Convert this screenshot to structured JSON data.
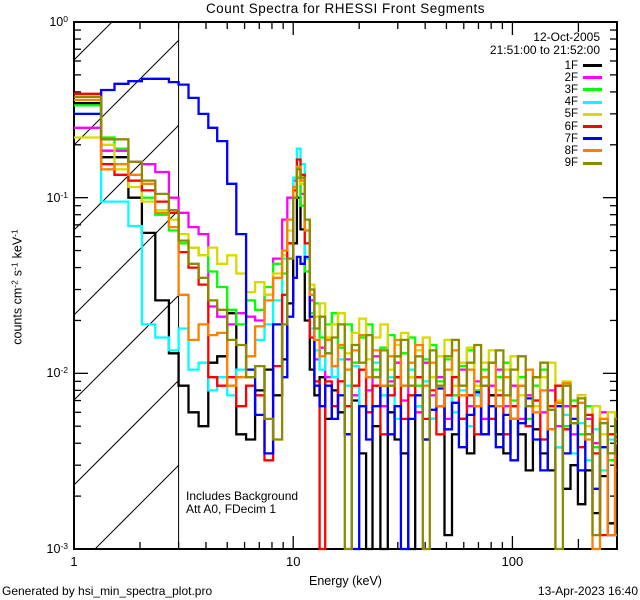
{
  "title": "Count Spectra for RHESSI Front Segments",
  "plot": {
    "date_line": "12-Oct-2005",
    "time_line": "21:51:00 to 21:52:00",
    "annotation_line1": "Includes Background",
    "annotation_line2": "Att A0, FDecim 1"
  },
  "footer": {
    "generated_by": "Generated by hsi_min_spectra_plot.pro",
    "timestamp": "13-Apr-2023 16:40"
  },
  "axes": {
    "x_label": "Energy (keV)",
    "y_label_parts": {
      "p1": "counts cm",
      "e1": "-2",
      "p2": "s",
      "e2": "-1",
      "p3": "keV",
      "e3": "-1"
    }
  },
  "legend": {
    "entries": [
      {
        "label": "1F",
        "color": "#000000"
      },
      {
        "label": "2F",
        "color": "#FF00FF"
      },
      {
        "label": "3F",
        "color": "#00FF00"
      },
      {
        "label": "4F",
        "color": "#00FFFF"
      },
      {
        "label": "5F",
        "color": "#D9D900"
      },
      {
        "label": "6F",
        "color": "#FF0000"
      },
      {
        "label": "7F",
        "color": "#0000FF"
      },
      {
        "label": "8F",
        "color": "#FF8000"
      },
      {
        "label": "9F",
        "color": "#8B8B00"
      }
    ]
  },
  "chart_data": {
    "type": "line",
    "x_scale": "log",
    "y_scale": "log",
    "xlim": [
      1,
      300
    ],
    "ylim": [
      0.001,
      1
    ],
    "grid": false,
    "legend_position": "top-right-inside",
    "hatch_region_kev": {
      "from": 1,
      "to": 3
    },
    "x_ticks": [
      {
        "label": "1",
        "value": 1
      },
      {
        "label": "10",
        "value": 10
      },
      {
        "label": "100",
        "value": 100
      }
    ],
    "y_ticks": [
      {
        "base": "10",
        "exp": "0",
        "value": 1
      },
      {
        "base": "10",
        "exp": "-1",
        "value": 0.1
      },
      {
        "base": "10",
        "exp": "-2",
        "value": 0.01
      },
      {
        "base": "10",
        "exp": "-3",
        "value": 0.001
      }
    ],
    "energies_kev": [
      1.0,
      1.33,
      1.53,
      1.77,
      2.04,
      2.35,
      2.71,
      3.0,
      3.33,
      3.7,
      4.1,
      4.5,
      5.0,
      5.5,
      6.1,
      6.7,
      7.4,
      8.1,
      8.9,
      9.4,
      10.0,
      10.4,
      10.8,
      11.3,
      11.9,
      12.5,
      13.2,
      14,
      15,
      16,
      17.2,
      18.5,
      20,
      21.5,
      23,
      25,
      27,
      29,
      31,
      33.5,
      36,
      39,
      42,
      45,
      49,
      53,
      57,
      62,
      67,
      72,
      78,
      84,
      91,
      98,
      106,
      115,
      124,
      134,
      145,
      157,
      170,
      184,
      199,
      215,
      232,
      251,
      272,
      294
    ],
    "series": [
      {
        "name": "1F",
        "color": "#000000",
        "values": [
          0.345,
          0.17,
          0.17,
          0.1,
          0.063,
          0.026,
          0.013,
          0.0085,
          0.006,
          0.005,
          0.0115,
          0.0125,
          0.022,
          0.0045,
          0.0042,
          0.008,
          0.0105,
          0.0075,
          0.012,
          0.025,
          0.055,
          0.1,
          0.066,
          0.02,
          0.0105,
          0.0075,
          0.0095,
          0.0055,
          0.008,
          0.006,
          0.0045,
          0.007,
          0.0035,
          0.001,
          0.005,
          0.001,
          0.006,
          0.0042,
          0.0035,
          0.001,
          0.0065,
          0.0042,
          0.0055,
          0.0065,
          0.0012,
          0.0045,
          0.0055,
          0.0035,
          0.0065,
          0.0045,
          0.0075,
          0.0045,
          0.0035,
          0.0055,
          0.0045,
          0.0028,
          0.0048,
          0.0035,
          0.0028,
          0.0038,
          0.0022,
          0.003,
          0.0018,
          0.0028,
          0.0016,
          0.0026,
          0.0014,
          0.0018
        ]
      },
      {
        "name": "2F",
        "color": "#FF00FF",
        "values": [
          0.25,
          0.185,
          0.185,
          0.16,
          0.155,
          0.14,
          0.1,
          0.082,
          0.068,
          0.062,
          0.024,
          0.021,
          0.019,
          0.022,
          0.021,
          0.02,
          0.028,
          0.045,
          0.075,
          0.1,
          0.125,
          0.13,
          0.105,
          0.065,
          0.026,
          0.012,
          0.014,
          0.0095,
          0.011,
          0.009,
          0.012,
          0.0075,
          0.0105,
          0.008,
          0.0125,
          0.0065,
          0.009,
          0.0115,
          0.007,
          0.0095,
          0.006,
          0.0115,
          0.0075,
          0.0095,
          0.0055,
          0.0085,
          0.0105,
          0.0065,
          0.009,
          0.0055,
          0.0085,
          0.0105,
          0.0065,
          0.0085,
          0.0055,
          0.0075,
          0.0095,
          0.006,
          0.008,
          0.005,
          0.0065,
          0.0045,
          0.0075,
          0.0055,
          0.004,
          0.006,
          0.0035,
          0.0045
        ]
      },
      {
        "name": "3F",
        "color": "#00FF00",
        "values": [
          0.335,
          0.22,
          0.19,
          0.125,
          0.1,
          0.08,
          0.065,
          0.055,
          0.052,
          0.047,
          0.038,
          0.031,
          0.023,
          0.019,
          0.026,
          0.023,
          0.031,
          0.042,
          0.037,
          0.055,
          0.1,
          0.13,
          0.09,
          0.038,
          0.022,
          0.025,
          0.016,
          0.019,
          0.022,
          0.014,
          0.019,
          0.0115,
          0.016,
          0.019,
          0.0105,
          0.014,
          0.0165,
          0.0095,
          0.013,
          0.016,
          0.0085,
          0.012,
          0.0145,
          0.009,
          0.012,
          0.0075,
          0.011,
          0.0135,
          0.008,
          0.0105,
          0.0065,
          0.0095,
          0.0115,
          0.007,
          0.0095,
          0.0055,
          0.0085,
          0.0105,
          0.0065,
          0.0085,
          0.005,
          0.007,
          0.0045,
          0.0065,
          0.0038,
          0.0055,
          0.0032,
          0.0045
        ]
      },
      {
        "name": "4F",
        "color": "#00FFFF",
        "values": [
          0.3,
          0.095,
          0.095,
          0.069,
          0.019,
          0.016,
          0.0135,
          0.018,
          0.0105,
          0.0115,
          0.008,
          0.0095,
          0.0075,
          0.0105,
          0.0125,
          0.0155,
          0.019,
          0.026,
          0.045,
          0.075,
          0.13,
          0.19,
          0.155,
          0.045,
          0.018,
          0.0135,
          0.0105,
          0.013,
          0.0095,
          0.012,
          0.0085,
          0.011,
          0.0065,
          0.0095,
          0.0115,
          0.0075,
          0.0095,
          0.0055,
          0.0085,
          0.0105,
          0.0065,
          0.009,
          0.0055,
          0.0085,
          0.0105,
          0.006,
          0.008,
          0.005,
          0.0075,
          0.0095,
          0.0055,
          0.0075,
          0.0045,
          0.0065,
          0.0085,
          0.005,
          0.007,
          0.0042,
          0.0062,
          0.0038,
          0.0058,
          0.0035,
          0.0052,
          0.0032,
          0.0048,
          0.0028,
          0.0042,
          0.0012
        ]
      },
      {
        "name": "5F",
        "color": "#D9D900",
        "values": [
          0.22,
          0.2,
          0.145,
          0.115,
          0.095,
          0.085,
          0.075,
          0.062,
          0.052,
          0.047,
          0.052,
          0.042,
          0.047,
          0.037,
          0.029,
          0.033,
          0.028,
          0.037,
          0.047,
          0.065,
          0.11,
          0.145,
          0.12,
          0.075,
          0.032,
          0.021,
          0.025,
          0.016,
          0.019,
          0.022,
          0.013,
          0.017,
          0.0205,
          0.012,
          0.016,
          0.019,
          0.0105,
          0.0145,
          0.017,
          0.0095,
          0.0135,
          0.016,
          0.0095,
          0.0125,
          0.0155,
          0.0085,
          0.0115,
          0.014,
          0.0085,
          0.0115,
          0.0135,
          0.008,
          0.0105,
          0.0125,
          0.0075,
          0.0105,
          0.0065,
          0.0095,
          0.0115,
          0.007,
          0.009,
          0.0055,
          0.0075,
          0.005,
          0.0065,
          0.0045,
          0.006,
          0.004
        ]
      },
      {
        "name": "6F",
        "color": "#FF0000",
        "values": [
          0.39,
          0.155,
          0.135,
          0.125,
          0.11,
          0.095,
          0.082,
          0.049,
          0.04,
          0.032,
          0.0095,
          0.0085,
          0.0095,
          0.0065,
          0.0085,
          0.0075,
          0.0032,
          0.011,
          0.028,
          0.055,
          0.11,
          0.165,
          0.135,
          0.055,
          0.016,
          0.009,
          0.001,
          0.009,
          0.0065,
          0.009,
          0.0065,
          0.0085,
          0.0105,
          0.006,
          0.0085,
          0.0045,
          0.0075,
          0.0095,
          0.0055,
          0.0075,
          0.0095,
          0.0055,
          0.008,
          0.0045,
          0.0075,
          0.0095,
          0.0055,
          0.0075,
          0.0045,
          0.0085,
          0.0055,
          0.0075,
          0.0045,
          0.0065,
          0.0085,
          0.005,
          0.007,
          0.0042,
          0.0065,
          0.0085,
          0.0048,
          0.0065,
          0.0038,
          0.0058,
          0.0035,
          0.0012,
          0.0045,
          0.0028
        ]
      },
      {
        "name": "7F",
        "color": "#0000FF",
        "values": [
          0.3,
          0.41,
          0.445,
          0.46,
          0.475,
          0.475,
          0.455,
          0.44,
          0.37,
          0.3,
          0.25,
          0.21,
          0.12,
          0.062,
          0.0105,
          0.0058,
          0.0035,
          0.019,
          0.0095,
          0.021,
          0.035,
          0.046,
          0.042,
          0.046,
          0.021,
          0.0085,
          0.0065,
          0.0085,
          0.0055,
          0.0075,
          0.0045,
          0.001,
          0.0065,
          0.0042,
          0.0065,
          0.0085,
          0.0045,
          0.0065,
          0.001,
          0.0055,
          0.0075,
          0.0042,
          0.0062,
          0.0082,
          0.0048,
          0.0068,
          0.0038,
          0.0058,
          0.0078,
          0.0045,
          0.0065,
          0.0038,
          0.0058,
          0.0032,
          0.0052,
          0.0072,
          0.0042,
          0.0028,
          0.0048,
          0.0065,
          0.0035,
          0.0055,
          0.0028,
          0.0045,
          0.0022,
          0.0038,
          0.0012,
          0.0032
        ]
      },
      {
        "name": "8F",
        "color": "#FF8000",
        "values": [
          0.36,
          0.145,
          0.155,
          0.135,
          0.12,
          0.082,
          0.068,
          0.028,
          0.0155,
          0.019,
          0.0165,
          0.017,
          0.0085,
          0.0095,
          0.0125,
          0.0185,
          0.026,
          0.035,
          0.05,
          0.075,
          0.115,
          0.15,
          0.125,
          0.065,
          0.028,
          0.0155,
          0.0125,
          0.0155,
          0.011,
          0.0145,
          0.0105,
          0.0135,
          0.0165,
          0.0095,
          0.0135,
          0.0085,
          0.0125,
          0.0155,
          0.0085,
          0.0115,
          0.0145,
          0.0085,
          0.0115,
          0.0065,
          0.0105,
          0.0135,
          0.0075,
          0.0105,
          0.0065,
          0.0095,
          0.0115,
          0.0065,
          0.0095,
          0.0055,
          0.0085,
          0.0105,
          0.006,
          0.008,
          0.0048,
          0.0068,
          0.0088,
          0.0052,
          0.0068,
          0.0042,
          0.001,
          0.0055,
          0.0012,
          0.0042
        ]
      },
      {
        "name": "9F",
        "color": "#8B8B00",
        "values": [
          0.375,
          0.215,
          0.215,
          0.16,
          0.125,
          0.105,
          0.085,
          0.057,
          0.042,
          0.035,
          0.026,
          0.023,
          0.0155,
          0.0145,
          0.0095,
          0.011,
          0.0055,
          0.0042,
          0.019,
          0.045,
          0.1,
          0.145,
          0.13,
          0.075,
          0.03,
          0.018,
          0.021,
          0.013,
          0.016,
          0.019,
          0.001,
          0.0145,
          0.0115,
          0.0165,
          0.0095,
          0.0135,
          0.0085,
          0.0125,
          0.0155,
          0.0085,
          0.0125,
          0.001,
          0.0135,
          0.0085,
          0.0125,
          0.0155,
          0.0085,
          0.0115,
          0.0145,
          0.0085,
          0.0115,
          0.0135,
          0.0075,
          0.0105,
          0.0125,
          0.0065,
          0.0095,
          0.0115,
          0.0062,
          0.001,
          0.0085,
          0.0052,
          0.0072,
          0.0045,
          0.0012,
          0.0052,
          0.0035,
          0.0055
        ]
      }
    ]
  }
}
